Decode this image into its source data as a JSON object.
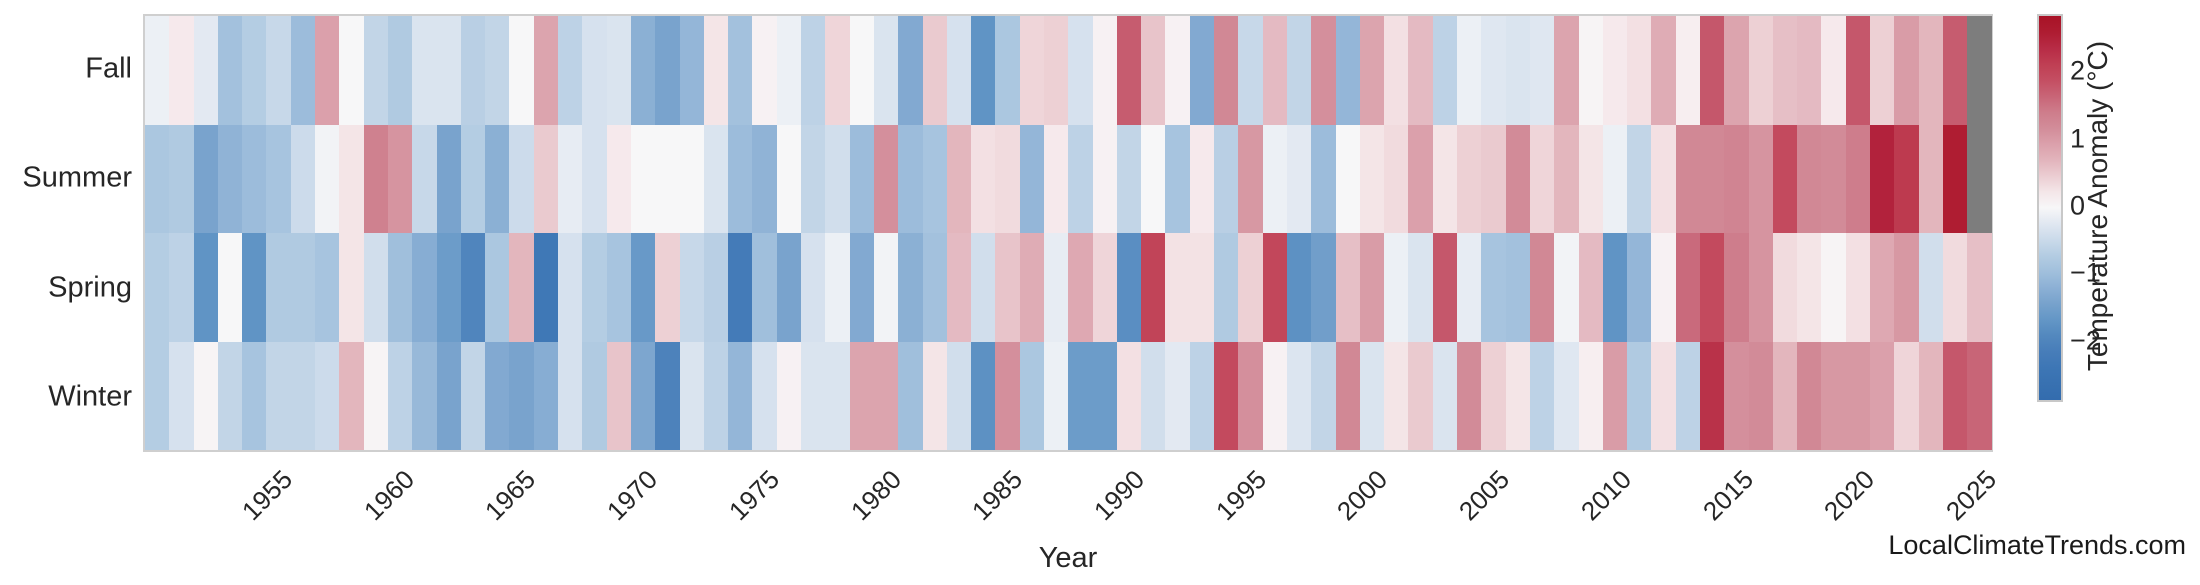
{
  "watermark": "LocalClimateTrends.com",
  "chart_data": {
    "type": "heatmap",
    "xlabel": "Year",
    "rows": [
      "Fall",
      "Summer",
      "Spring",
      "Winter"
    ],
    "x_tick_labels": [
      "1955",
      "1960",
      "1965",
      "1970",
      "1975",
      "1980",
      "1985",
      "1990",
      "1995",
      "2000",
      "2005",
      "2010",
      "2015",
      "2020",
      "2025"
    ],
    "x_ticks": [
      1955,
      1960,
      1965,
      1970,
      1975,
      1980,
      1985,
      1990,
      1995,
      2000,
      2005,
      2010,
      2015,
      2020,
      2025
    ],
    "year_start": 1950,
    "year_end": 2025,
    "colorbar": {
      "label": "Temperature Anomaly (°C)",
      "tick_values": [
        2,
        1,
        0,
        -1,
        -2
      ],
      "tick_labels": [
        "2",
        "1",
        "0",
        "−1",
        "−2"
      ],
      "vmin": -2.85,
      "vmax": 2.85
    },
    "nan_color": "#7d7d7d",
    "grid": false,
    "colormap_stops": [
      [
        -2.85,
        "#336cae"
      ],
      [
        -2.3,
        "#3f78b6"
      ],
      [
        -2.0,
        "#4d82bb"
      ],
      [
        -1.7,
        "#6094c5"
      ],
      [
        -1.4,
        "#79a3cd"
      ],
      [
        -1.1,
        "#94b6d8"
      ],
      [
        -0.8,
        "#abc7e0"
      ],
      [
        -0.55,
        "#c2d5e7"
      ],
      [
        -0.35,
        "#d6e1ee"
      ],
      [
        -0.15,
        "#e7ecf3"
      ],
      [
        0.0,
        "#f7f7f8"
      ],
      [
        0.15,
        "#f7eef0"
      ],
      [
        0.35,
        "#f1dbde"
      ],
      [
        0.55,
        "#e8c4ca"
      ],
      [
        0.8,
        "#dfacb5"
      ],
      [
        1.0,
        "#d99ca7"
      ],
      [
        1.2,
        "#d28b98"
      ],
      [
        1.45,
        "#cd7a89"
      ],
      [
        1.7,
        "#c76073"
      ],
      [
        1.95,
        "#c34a5e"
      ],
      [
        2.2,
        "#bd3a4f"
      ],
      [
        2.45,
        "#b42540"
      ],
      [
        2.65,
        "#ad1a2e"
      ],
      [
        2.85,
        "#a81226"
      ]
    ],
    "series": [
      {
        "name": "Fall",
        "values": [
          -0.1,
          0.2,
          -0.2,
          -0.9,
          -0.7,
          -0.5,
          -1.0,
          0.95,
          0.0,
          -0.55,
          -0.75,
          -0.3,
          -0.3,
          -0.65,
          -0.55,
          0.0,
          0.9,
          -0.6,
          -0.35,
          -0.3,
          -1.2,
          -1.4,
          -1.1,
          0.25,
          -0.9,
          0.1,
          -0.1,
          -0.6,
          0.4,
          0.0,
          -0.3,
          -1.3,
          0.5,
          -0.35,
          -1.7,
          -0.8,
          0.4,
          0.45,
          -0.35,
          0.1,
          1.75,
          0.55,
          0.1,
          -1.3,
          1.25,
          -0.5,
          0.65,
          -0.55,
          1.15,
          -1.1,
          0.9,
          0.3,
          0.65,
          -0.6,
          -0.1,
          -0.25,
          -0.3,
          -0.25,
          0.9,
          0.05,
          0.2,
          0.3,
          0.8,
          0.15,
          1.8,
          0.9,
          0.45,
          0.6,
          0.65,
          0.2,
          1.8,
          0.45,
          1.0,
          0.7,
          1.75,
          null
        ]
      },
      {
        "name": "Summer",
        "values": [
          -0.8,
          -0.75,
          -1.4,
          -1.15,
          -1.0,
          -0.85,
          -0.45,
          -0.05,
          0.25,
          1.35,
          1.1,
          -0.5,
          -1.4,
          -0.7,
          -1.2,
          -0.45,
          0.5,
          -0.15,
          -0.35,
          0.2,
          0.0,
          0.0,
          0.0,
          -0.3,
          -1.0,
          -1.15,
          0.0,
          -0.55,
          -0.4,
          -1.0,
          1.15,
          -1.0,
          -0.85,
          0.7,
          0.3,
          0.35,
          -1.1,
          0.2,
          -0.6,
          0.1,
          -0.55,
          0.0,
          -0.85,
          0.2,
          -0.65,
          1.05,
          -0.1,
          -0.2,
          -1.0,
          0.0,
          0.25,
          0.35,
          0.95,
          0.25,
          0.45,
          0.5,
          1.2,
          0.4,
          0.7,
          0.25,
          -0.1,
          -0.55,
          0.3,
          1.25,
          1.25,
          1.3,
          1.1,
          1.95,
          1.25,
          1.2,
          1.4,
          2.5,
          2.2,
          0.7,
          2.6,
          null
        ]
      },
      {
        "name": "Spring",
        "values": [
          -0.7,
          -0.6,
          -1.7,
          0.0,
          -1.7,
          -0.75,
          -0.75,
          -0.85,
          0.25,
          -0.4,
          -0.95,
          -1.25,
          -1.55,
          -1.95,
          -0.8,
          0.7,
          -2.3,
          -0.35,
          -0.7,
          -0.85,
          -1.6,
          0.45,
          -0.5,
          -0.65,
          -2.2,
          -0.95,
          -1.4,
          -0.35,
          -0.1,
          -1.3,
          -0.05,
          -1.2,
          -0.9,
          0.65,
          -0.4,
          0.55,
          0.8,
          -0.15,
          0.85,
          0.4,
          -1.8,
          2.05,
          0.28,
          0.28,
          -0.75,
          0.45,
          2.0,
          -1.75,
          -1.5,
          0.6,
          1.0,
          -0.1,
          -0.3,
          1.8,
          -0.15,
          -0.85,
          -0.9,
          1.25,
          -0.05,
          0.65,
          -1.7,
          -1.1,
          0.1,
          1.6,
          1.95,
          1.4,
          1.1,
          0.35,
          0.25,
          0.05,
          0.3,
          0.85,
          1.05,
          -0.4,
          0.35,
          0.6
        ]
      },
      {
        "name": "Winter",
        "values": [
          -0.7,
          -0.35,
          0.05,
          -0.55,
          -0.85,
          -0.55,
          -0.55,
          -0.45,
          0.7,
          0.05,
          -0.6,
          -1.05,
          -1.4,
          -0.55,
          -1.3,
          -1.4,
          -1.25,
          -0.35,
          -0.75,
          0.55,
          -1.35,
          -2.0,
          -0.3,
          -0.6,
          -1.1,
          -0.35,
          0.1,
          -0.3,
          -0.3,
          0.9,
          0.9,
          -0.95,
          0.25,
          -0.4,
          -1.75,
          1.15,
          -0.8,
          -0.1,
          -1.55,
          -1.55,
          0.3,
          -0.4,
          -0.2,
          -0.6,
          1.95,
          1.15,
          0.1,
          -0.28,
          -0.55,
          1.25,
          -0.3,
          0.25,
          0.5,
          -0.3,
          1.2,
          0.45,
          0.25,
          -0.6,
          -0.25,
          0.15,
          1.0,
          -0.75,
          0.3,
          -0.6,
          2.3,
          1.15,
          1.2,
          0.7,
          1.25,
          1.05,
          1.05,
          0.95,
          0.4,
          0.7,
          1.8,
          1.65
        ]
      }
    ]
  }
}
